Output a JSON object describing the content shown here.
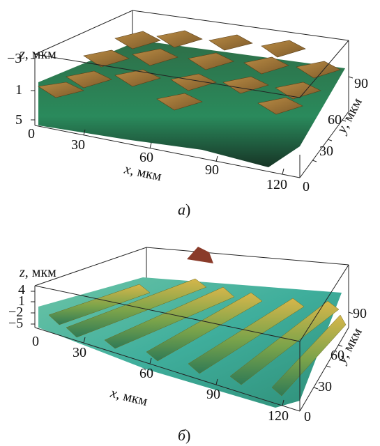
{
  "panels": [
    {
      "caption": "a)",
      "caption_letter": "а",
      "caption_paren": ")",
      "z_label_var": "z",
      "z_label_unit": ", мкм",
      "x_label_var": "x",
      "x_label_unit": ", мкм",
      "y_label_var": "y",
      "y_label_unit": ", мкм",
      "z_ticks": [
        "−3",
        "1",
        "5"
      ],
      "x_ticks": [
        "0",
        "30",
        "60",
        "90",
        "120"
      ],
      "y_ticks": [
        "0",
        "30",
        "60",
        "90"
      ],
      "surface_colors": {
        "top": "#a97a3a",
        "side": "#2f7d4a",
        "dark": "#1c3a2a"
      }
    },
    {
      "caption": "б)",
      "caption_letter": "б",
      "caption_paren": ")",
      "z_label_var": "z",
      "z_label_unit": ", мкм",
      "x_label_var": "x",
      "x_label_unit": ", мкм",
      "y_label_var": "y",
      "y_label_unit": ", мкм",
      "z_ticks": [
        "4",
        "1",
        "−2",
        "−5"
      ],
      "x_ticks": [
        "0",
        "30",
        "60",
        "90",
        "120"
      ],
      "y_ticks": [
        "0",
        "30",
        "60",
        "90"
      ],
      "surface_colors": {
        "base": "#4fb3a0",
        "ridge": "#c9b24a",
        "peak": "#8a3b2a"
      }
    }
  ]
}
